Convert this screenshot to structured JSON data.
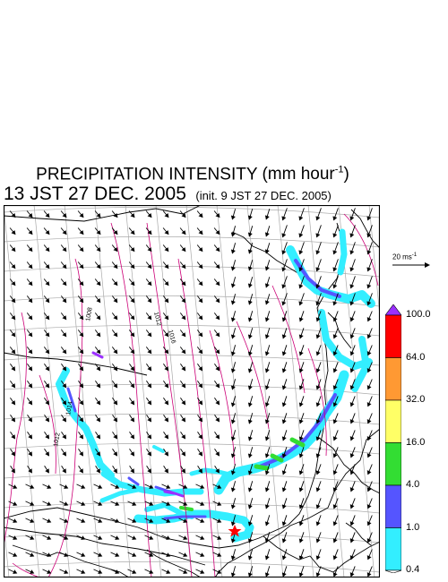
{
  "header": {
    "title": "PRECIPITATION INTENSITY",
    "units_prefix": "(mm hour",
    "units_exponent": "-1",
    "units_suffix": ")",
    "date_line": "13 JST 27 DEC. 2005",
    "init_line": "(init. 9 JST 27 DEC. 2005)"
  },
  "reference_vector": {
    "value": "20 ms",
    "exponent": "-1"
  },
  "colorbar": {
    "labels": [
      "100.0",
      "64.0",
      "32.0",
      "16.0",
      "4.0",
      "1.0",
      "0.4"
    ],
    "colors": [
      "#9b30ff",
      "#ff0000",
      "#ff9933",
      "#ffff66",
      "#33dd33",
      "#5555ff",
      "#33eeff",
      "#ffffff"
    ]
  },
  "map": {
    "isobar_labels": [
      "1008",
      "1012",
      "1016",
      "1014",
      "1012"
    ],
    "wind_direction": "northwest",
    "marker": "red-star",
    "line_colors": {
      "isobar": "#cc0077",
      "coast": "#000000",
      "grid": "#aaaaaa"
    }
  }
}
